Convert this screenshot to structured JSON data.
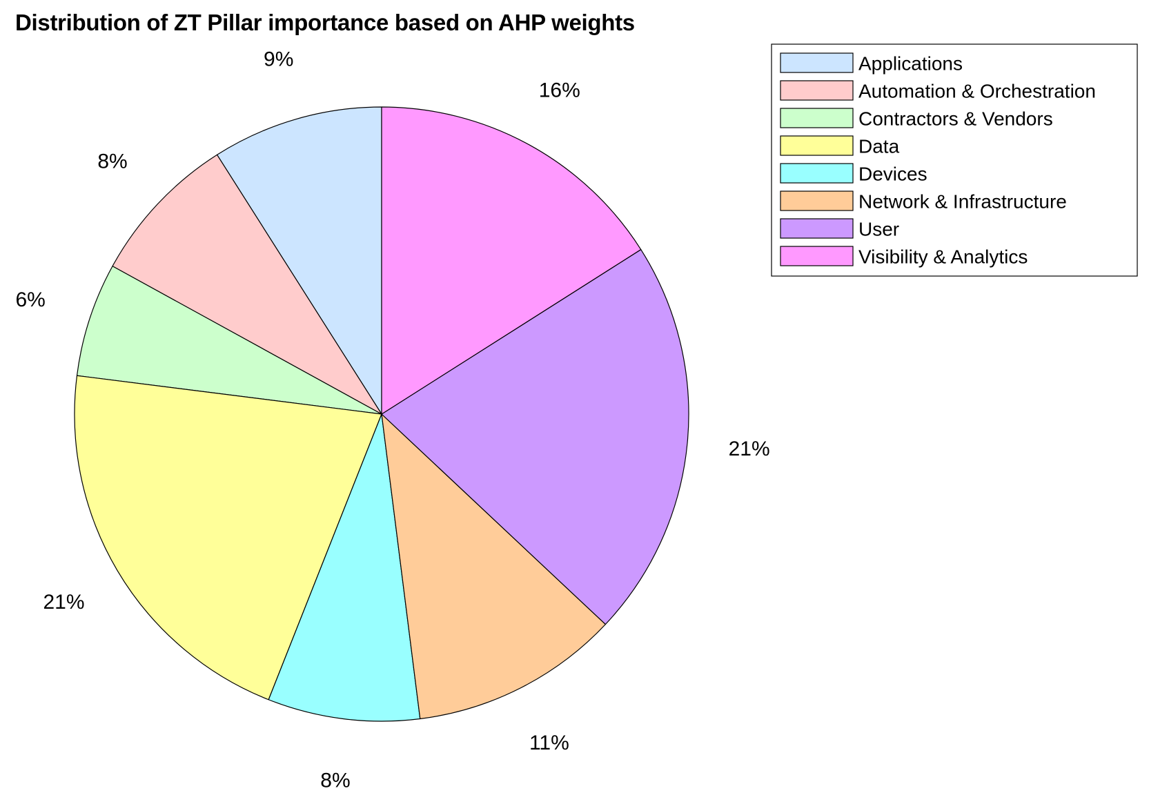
{
  "chart_data": {
    "type": "pie",
    "title": "Distribution of ZT Pillar importance based on AHP weights",
    "legend_position": "top-right",
    "categories": [
      "Applications",
      "Automation & Orchestration",
      "Contractors & Vendors",
      "Data",
      "Devices",
      "Network & Infrastructure",
      "User",
      "Visibility & Analytics"
    ],
    "values": [
      9,
      8,
      6,
      21,
      8,
      11,
      21,
      16
    ],
    "labels": [
      "9%",
      "8%",
      "6%",
      "21%",
      "8%",
      "11%",
      "21%",
      "16%"
    ],
    "colors": [
      "#cce5ff",
      "#ffcccc",
      "#ccffcc",
      "#ffff99",
      "#99ffff",
      "#ffcc99",
      "#cc99ff",
      "#ff99ff"
    ],
    "direction": "counterclockwise",
    "start": "top"
  }
}
